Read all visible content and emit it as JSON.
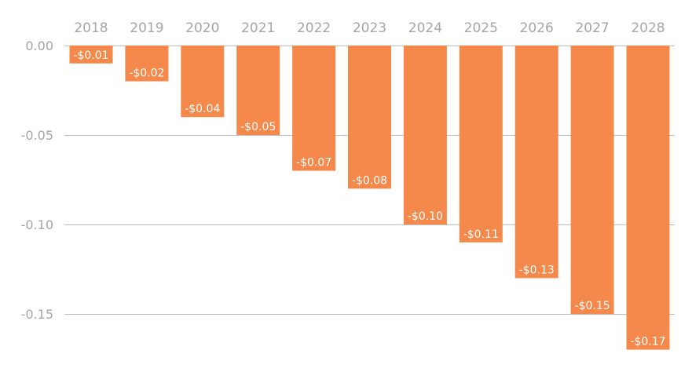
{
  "chart_data": {
    "type": "bar",
    "title": "",
    "xlabel": "",
    "ylabel": "",
    "categories": [
      "2018",
      "2019",
      "2020",
      "2021",
      "2022",
      "2023",
      "2024",
      "2025",
      "2026",
      "2027",
      "2028"
    ],
    "values": [
      -0.01,
      -0.02,
      -0.04,
      -0.05,
      -0.07,
      -0.08,
      -0.1,
      -0.11,
      -0.13,
      -0.15,
      -0.17
    ],
    "data_labels": [
      "-$0.01",
      "-$0.02",
      "-$0.04",
      "-$0.05",
      "-$0.07",
      "-$0.08",
      "-$0.10",
      "-$0.11",
      "-$0.13",
      "-$0.15",
      "-$0.17"
    ],
    "y_ticks": [
      0.0,
      -0.05,
      -0.1,
      -0.15
    ],
    "y_tick_labels": [
      "0.00",
      "-0.05",
      "-0.10",
      "-0.15"
    ],
    "ylim": [
      -0.175,
      0
    ],
    "x_axis_position": "top",
    "grid": true,
    "legend": "none",
    "colors": {
      "bar": "#F4894B",
      "grid": "#BDBDBD",
      "tick_label": "#A6A6A6",
      "data_label": "#FFFFFF"
    }
  }
}
